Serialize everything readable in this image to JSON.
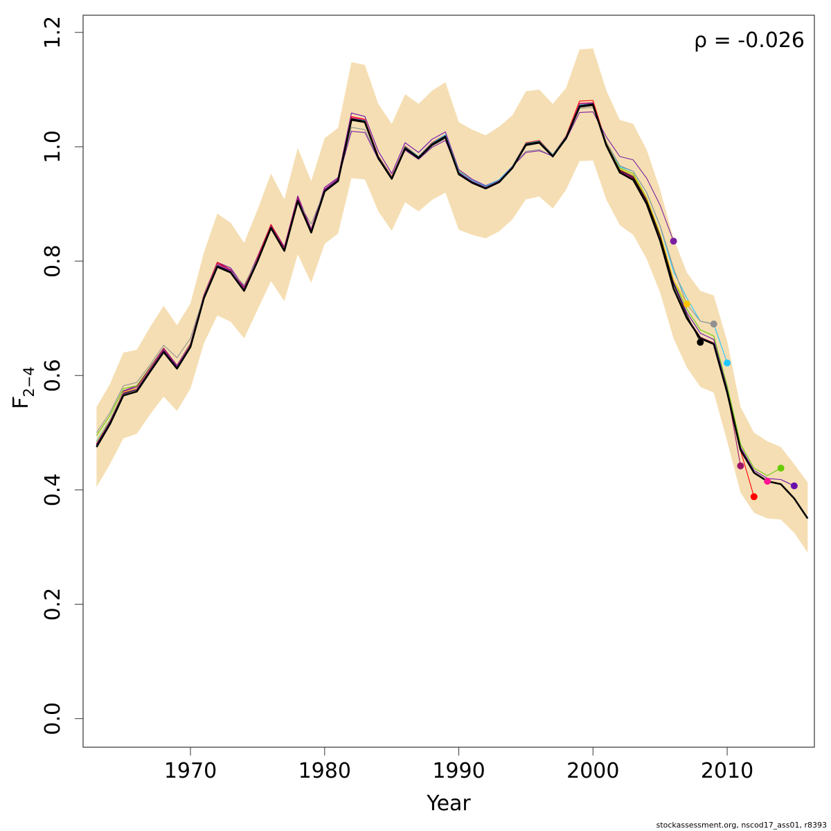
{
  "chart_data": {
    "type": "line",
    "xlabel": "Year",
    "ylabel": "F",
    "ylabel_sub": "2−4",
    "annotation": "ρ = -0.026",
    "xlim": [
      1962,
      2016.5
    ],
    "ylim": [
      -0.05,
      1.23
    ],
    "xticks": [
      1970,
      1980,
      1990,
      2000,
      2010
    ],
    "yticks": [
      0.0,
      0.2,
      0.4,
      0.6,
      0.8,
      1.0,
      1.2
    ],
    "ytick_labels": [
      "0.0",
      "0.2",
      "0.4",
      "0.6",
      "0.8",
      "1.0",
      "1.2"
    ],
    "band_color": "#f5deb3",
    "main_years": [
      1963,
      1964,
      1965,
      1966,
      1967,
      1968,
      1969,
      1970,
      1971,
      1972,
      1973,
      1974,
      1975,
      1976,
      1977,
      1978,
      1979,
      1980,
      1981,
      1982,
      1983,
      1984,
      1985,
      1986,
      1987,
      1988,
      1989,
      1990,
      1991,
      1992,
      1993,
      1994,
      1995,
      1996,
      1997,
      1998,
      1999,
      2000,
      2001,
      2002,
      2003,
      2004,
      2005,
      2006,
      2007,
      2008,
      2009,
      2010,
      2011,
      2012,
      2013,
      2014,
      2015,
      2016
    ],
    "main": [
      0.475,
      0.515,
      0.565,
      0.572,
      0.607,
      0.641,
      0.612,
      0.65,
      0.735,
      0.79,
      0.78,
      0.748,
      0.8,
      0.858,
      0.818,
      0.905,
      0.85,
      0.922,
      0.94,
      1.047,
      1.043,
      0.98,
      0.944,
      0.997,
      0.98,
      1.003,
      1.017,
      0.952,
      0.937,
      0.927,
      0.938,
      0.963,
      1.003,
      1.007,
      0.983,
      1.015,
      1.07,
      1.073,
      1.002,
      0.955,
      0.942,
      0.9,
      0.836,
      0.752,
      0.7,
      0.665,
      0.655,
      0.57,
      0.47,
      0.43,
      0.415,
      0.41,
      0.385,
      0.35
    ],
    "band_upper": [
      0.545,
      0.585,
      0.64,
      0.645,
      0.685,
      0.722,
      0.688,
      0.726,
      0.815,
      0.883,
      0.867,
      0.832,
      0.89,
      0.953,
      0.908,
      0.998,
      0.94,
      1.015,
      1.033,
      1.148,
      1.143,
      1.075,
      1.04,
      1.092,
      1.075,
      1.098,
      1.113,
      1.043,
      1.03,
      1.02,
      1.035,
      1.055,
      1.097,
      1.1,
      1.075,
      1.103,
      1.17,
      1.172,
      1.098,
      1.047,
      1.04,
      0.995,
      0.925,
      0.84,
      0.78,
      0.748,
      0.74,
      0.66,
      0.545,
      0.5,
      0.485,
      0.475,
      0.445,
      0.413
    ],
    "band_lower": [
      0.405,
      0.445,
      0.49,
      0.498,
      0.532,
      0.563,
      0.538,
      0.577,
      0.656,
      0.705,
      0.694,
      0.665,
      0.715,
      0.765,
      0.73,
      0.812,
      0.762,
      0.83,
      0.848,
      0.945,
      0.943,
      0.887,
      0.853,
      0.903,
      0.887,
      0.907,
      0.92,
      0.855,
      0.846,
      0.84,
      0.852,
      0.873,
      0.908,
      0.913,
      0.892,
      0.925,
      0.975,
      0.976,
      0.907,
      0.863,
      0.846,
      0.804,
      0.745,
      0.665,
      0.614,
      0.58,
      0.57,
      0.485,
      0.395,
      0.36,
      0.35,
      0.348,
      0.325,
      0.29
    ],
    "retro_series": [
      {
        "color": "#6a0dad",
        "end_year": 2015,
        "end_value": 0.407,
        "offsets": [
          0,
          0.005,
          0.008,
          0.01,
          0.006,
          0.004,
          0.003,
          0.005,
          0.006,
          0.008,
          0.008,
          0.007,
          0.008,
          0.006,
          0.007,
          0.009,
          0.006,
          0.007,
          0.006,
          0.012,
          0.01,
          0.012,
          0.009,
          0.01,
          0.01,
          0.01,
          0.009,
          0.008,
          0.006,
          0.005,
          0.004,
          0.003,
          0.002,
          0.002,
          0.002,
          0.003,
          0.003,
          0.003,
          0.004,
          0.006,
          0.007,
          0.009,
          0.01,
          0.011,
          0.01,
          0.009,
          0.008,
          0.007,
          0.005,
          0.004,
          0.005,
          0.008,
          0.01
        ]
      },
      {
        "color": "#66cc00",
        "end_year": 2014,
        "end_value": 0.438,
        "offsets": [
          0.02,
          0.015,
          0.012,
          0.01,
          0.008,
          0.007,
          0.006,
          0.005,
          0.004,
          0.004,
          0.003,
          0.003,
          0.003,
          0.002,
          0.002,
          0.002,
          0.001,
          0.001,
          0.001,
          0.0,
          0.0,
          0.0,
          0.001,
          0.001,
          0.002,
          0.003,
          0.004,
          0.005,
          0.004,
          0.003,
          0.003,
          0.002,
          0.002,
          0.002,
          0.002,
          0.001,
          0.001,
          0.001,
          0.001,
          0.008,
          0.011,
          0.011,
          0.012,
          0.015,
          0.016,
          0.015,
          0.014,
          0.012,
          0.01,
          0.008,
          0.01,
          0.018
        ]
      },
      {
        "color": "#ff1493",
        "end_year": 2013,
        "end_value": 0.415,
        "offsets": [
          0.005,
          0.006,
          0.004,
          0.004,
          0.004,
          0.005,
          0.005,
          0.003,
          0.003,
          0.005,
          0.004,
          0.004,
          0.004,
          0.002,
          0.003,
          0.004,
          0.002,
          0.002,
          0.003,
          0.004,
          0.004,
          0.003,
          0.003,
          0.003,
          0.003,
          0.004,
          0.004,
          0.003,
          0.002,
          0.002,
          0.002,
          0.002,
          0.003,
          0.004,
          0.002,
          0.004,
          0.006,
          0.004,
          0.002,
          0.003,
          0.004,
          0.003,
          0.003,
          0.002,
          0.002,
          0.002,
          0.002,
          0.001,
          0.001,
          0.0,
          0.001
        ]
      },
      {
        "color": "#ff0000",
        "end_year": 2012,
        "end_value": 0.388,
        "offsets": [
          0.004,
          0.004,
          0.005,
          0.005,
          0.006,
          0.006,
          0.004,
          0.004,
          0.005,
          0.008,
          0.005,
          0.005,
          0.006,
          0.006,
          0.005,
          0.006,
          0.004,
          0.004,
          0.004,
          0.006,
          0.005,
          0.004,
          0.004,
          0.004,
          0.003,
          0.004,
          0.004,
          0.003,
          0.003,
          0.002,
          0.003,
          0.003,
          0.004,
          0.004,
          0.003,
          0.004,
          0.01,
          0.008,
          0.004,
          0.003,
          0.002,
          0.002,
          0.002,
          0.001,
          0.001,
          0.001,
          0.001,
          0.001,
          -0.001,
          -0.042
        ]
      },
      {
        "color": "#a0136b",
        "end_year": 2011,
        "end_value": 0.442,
        "offsets": [
          0.006,
          0.007,
          0.007,
          0.008,
          0.007,
          0.007,
          0.006,
          0.006,
          0.006,
          0.006,
          0.005,
          0.004,
          0.004,
          0.004,
          0.004,
          0.005,
          0.005,
          0.004,
          0.004,
          0.003,
          0.003,
          0.002,
          0.002,
          0.002,
          0.002,
          0.002,
          0.002,
          0.002,
          0.002,
          0.002,
          0.002,
          0.002,
          0.002,
          0.002,
          0.002,
          0.003,
          0.005,
          0.004,
          0.002,
          0.002,
          0.003,
          0.003,
          0.002,
          0.002,
          0.002,
          0.002,
          0.002,
          0.003,
          -0.028
        ]
      },
      {
        "color": "#1ec8ff",
        "end_year": 2010,
        "end_value": 0.622,
        "offsets": [
          0.01,
          0.008,
          0.006,
          0.005,
          0.004,
          0.004,
          0.004,
          0.004,
          0.003,
          0.003,
          0.003,
          0.003,
          0.002,
          0.002,
          0.002,
          0.002,
          0.002,
          0.002,
          0.002,
          0.002,
          0.003,
          0.003,
          0.003,
          0.003,
          0.003,
          0.003,
          0.004,
          0.004,
          0.004,
          0.004,
          0.004,
          0.003,
          0.003,
          0.003,
          0.003,
          0.003,
          0.003,
          0.002,
          0.005,
          0.01,
          0.015,
          0.02,
          0.025,
          0.03,
          0.035,
          0.03,
          0.035,
          0.052
        ]
      },
      {
        "color": "#909090",
        "end_year": 2009,
        "end_value": 0.69,
        "offsets": [
          0.025,
          0.02,
          0.017,
          0.016,
          0.012,
          0.012,
          0.019,
          0.015,
          0.004,
          0.004,
          0.003,
          0.01,
          0.004,
          -0.002,
          0.004,
          0.0,
          0.015,
          0.002,
          0.003,
          -0.013,
          -0.013,
          -0.002,
          0.003,
          -0.002,
          0.0,
          -0.001,
          -0.003,
          0.003,
          0.003,
          0.003,
          0.002,
          0.002,
          -0.011,
          -0.012,
          0.0,
          -0.002,
          -0.003,
          -0.004,
          0.006,
          0.012,
          0.015,
          0.02,
          0.026,
          0.036,
          0.024,
          0.03,
          0.035
        ]
      },
      {
        "color": "#ffc300",
        "end_year": 2007,
        "end_value": 0.725,
        "offsets": [
          0.008,
          0.007,
          0.006,
          0.005,
          0.005,
          0.004,
          0.004,
          0.004,
          0.003,
          0.003,
          0.003,
          0.003,
          0.003,
          0.003,
          0.003,
          0.002,
          0.002,
          0.002,
          0.002,
          0.002,
          0.002,
          0.002,
          0.002,
          0.002,
          0.002,
          0.002,
          0.002,
          0.002,
          0.002,
          0.002,
          0.002,
          0.002,
          0.002,
          0.002,
          0.002,
          0.002,
          0.002,
          0.002,
          0.004,
          0.006,
          0.008,
          0.01,
          0.012,
          0.015,
          0.025
        ]
      },
      {
        "color": "#000000",
        "end_year": 2008,
        "end_value": 0.658,
        "offsets": [
          0.003,
          0.003,
          0.003,
          0.003,
          0.003,
          0.003,
          0.003,
          0.003,
          0.002,
          0.002,
          0.002,
          0.002,
          0.002,
          0.002,
          0.002,
          0.002,
          0.002,
          0.002,
          0.002,
          0.002,
          0.002,
          0.002,
          0.002,
          0.002,
          0.002,
          0.002,
          0.002,
          0.002,
          0.002,
          0.002,
          0.002,
          0.002,
          0.002,
          0.002,
          0.002,
          0.002,
          0.002,
          0.002,
          0.003,
          0.004,
          0.005,
          0.006,
          0.008,
          0.008,
          0.006,
          -0.007
        ]
      },
      {
        "color": "#7b1fa2",
        "end_year": 2006,
        "end_value": 0.835,
        "offsets": [
          0.005,
          0.005,
          0.004,
          0.004,
          0.004,
          0.004,
          0.004,
          0.003,
          0.003,
          0.003,
          0.003,
          0.003,
          0.003,
          0.003,
          0.003,
          0.003,
          0.003,
          0.003,
          0.003,
          -0.02,
          -0.018,
          -0.002,
          0.002,
          -0.003,
          -0.002,
          -0.004,
          -0.006,
          0.003,
          0.002,
          0.002,
          0.002,
          0.002,
          -0.013,
          -0.014,
          0.001,
          -0.002,
          -0.01,
          -0.012,
          0.015,
          0.028,
          0.035,
          0.045,
          0.062,
          0.083
        ]
      }
    ]
  },
  "footer": "stockassessment.org, nscod17_ass01, r8393"
}
